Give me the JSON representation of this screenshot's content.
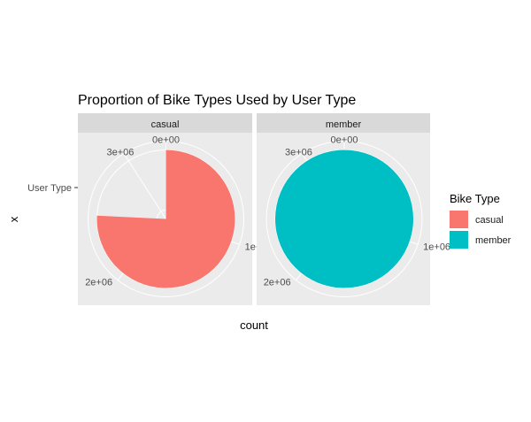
{
  "chart_data": {
    "type": "pie",
    "title": "Proportion of Bike Types Used by User Type",
    "xlabel": "count",
    "ylabel": "x",
    "y_tick_label": "User Type",
    "theta_ticks": [
      {
        "value": 0,
        "label": "0e+00"
      },
      {
        "value": 1000000,
        "label": "1e+06"
      },
      {
        "value": 2000000,
        "label": "2e+06"
      },
      {
        "value": 3000000,
        "label": "3e+06"
      }
    ],
    "axis_max": 3300000,
    "panels": [
      {
        "name": "casual",
        "slices": [
          {
            "group": "casual",
            "value": 2500000
          }
        ]
      },
      {
        "name": "member",
        "slices": [
          {
            "group": "member",
            "value": 3300000
          }
        ]
      }
    ],
    "legend": {
      "title": "Bike Type",
      "position": "right",
      "entries": [
        {
          "label": "casual",
          "color": "#F8766D"
        },
        {
          "label": "member",
          "color": "#00BFC4"
        }
      ]
    },
    "grid": true
  },
  "colors": {
    "panel_bg": "#EBEBEB",
    "strip_bg": "#D9D9D9",
    "grid": "#FFFFFF",
    "text": "#4D4D4D"
  }
}
